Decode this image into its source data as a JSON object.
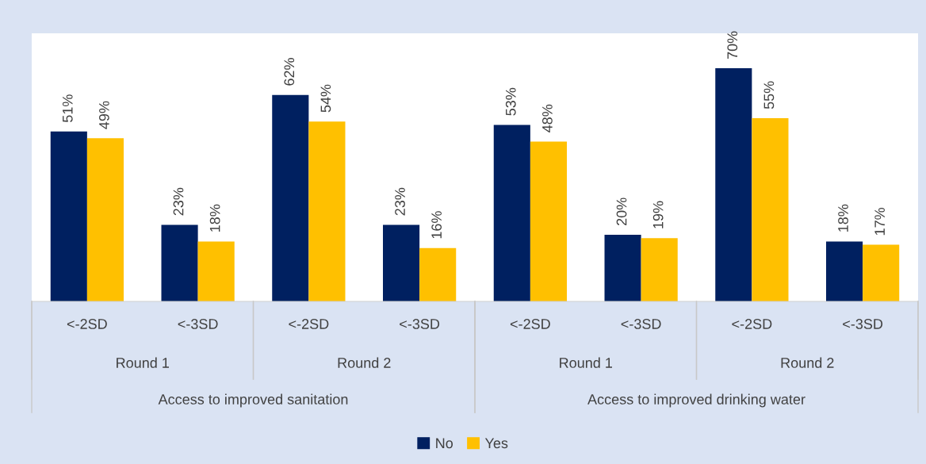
{
  "chart_data": {
    "type": "bar",
    "categories": [
      "<-2SD",
      "<-3SD",
      "<-2SD",
      "<-3SD",
      "<-2SD",
      "<-3SD",
      "<-2SD",
      "<-3SD"
    ],
    "series": [
      {
        "name": "No",
        "color": "#002060",
        "values": [
          51,
          23,
          62,
          23,
          53,
          20,
          70,
          18
        ],
        "value_labels": [
          "51%",
          "23%",
          "62%",
          "23%",
          "53%",
          "20%",
          "70%",
          "18%"
        ]
      },
      {
        "name": "Yes",
        "color": "#ffc000",
        "values": [
          49,
          18,
          54,
          16,
          48,
          19,
          55,
          17
        ],
        "value_labels": [
          "49%",
          "18%",
          "54%",
          "16%",
          "48%",
          "19%",
          "55%",
          "17%"
        ]
      }
    ],
    "annotations": [
      "Round 1",
      "Round 2",
      "Round 1",
      "Round 2",
      "Access to improved sanitation",
      "Access to improved drinking water"
    ],
    "legend": "bottom"
  }
}
